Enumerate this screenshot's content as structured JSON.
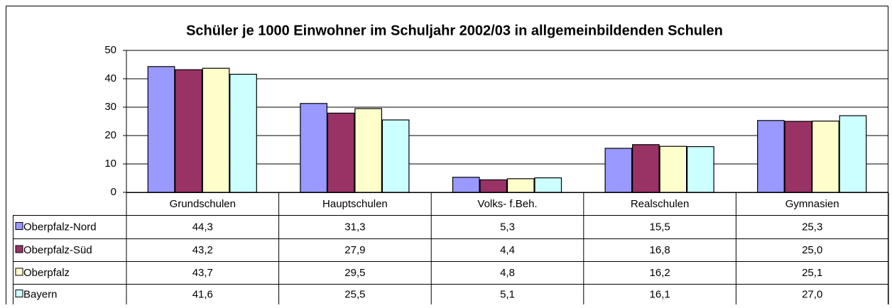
{
  "chart_data": {
    "type": "bar",
    "title": "Schüler je 1000 Einwohner im Schuljahr 2002/03 in allgemeinbildenden Schulen",
    "categories": [
      "Grundschulen",
      "Hauptschulen",
      "Volks- f.Beh.",
      "Realschulen",
      "Gymnasien"
    ],
    "series": [
      {
        "name": "Oberpfalz-Nord",
        "color": "#9999ff",
        "values": [
          44.3,
          31.3,
          5.3,
          15.5,
          25.3
        ],
        "value_labels": [
          "44,3",
          "31,3",
          "5,3",
          "15,5",
          "25,3"
        ]
      },
      {
        "name": "Oberpfalz-Süd",
        "color": "#993366",
        "values": [
          43.2,
          27.9,
          4.4,
          16.8,
          25.0
        ],
        "value_labels": [
          "43,2",
          "27,9",
          "4,4",
          "16,8",
          "25,0"
        ]
      },
      {
        "name": "Oberpfalz",
        "color": "#ffffcc",
        "values": [
          43.7,
          29.5,
          4.8,
          16.2,
          25.1
        ],
        "value_labels": [
          "43,7",
          "29,5",
          "4,8",
          "16,2",
          "25,1"
        ]
      },
      {
        "name": "Bayern",
        "color": "#ccffff",
        "values": [
          41.6,
          25.5,
          5.1,
          16.1,
          27.0
        ],
        "value_labels": [
          "41,6",
          "25,5",
          "5,1",
          "16,1",
          "27,0"
        ]
      }
    ],
    "ylim": [
      0,
      50
    ],
    "yticks": [
      0,
      10,
      20,
      30,
      40,
      50
    ],
    "grid": true
  }
}
